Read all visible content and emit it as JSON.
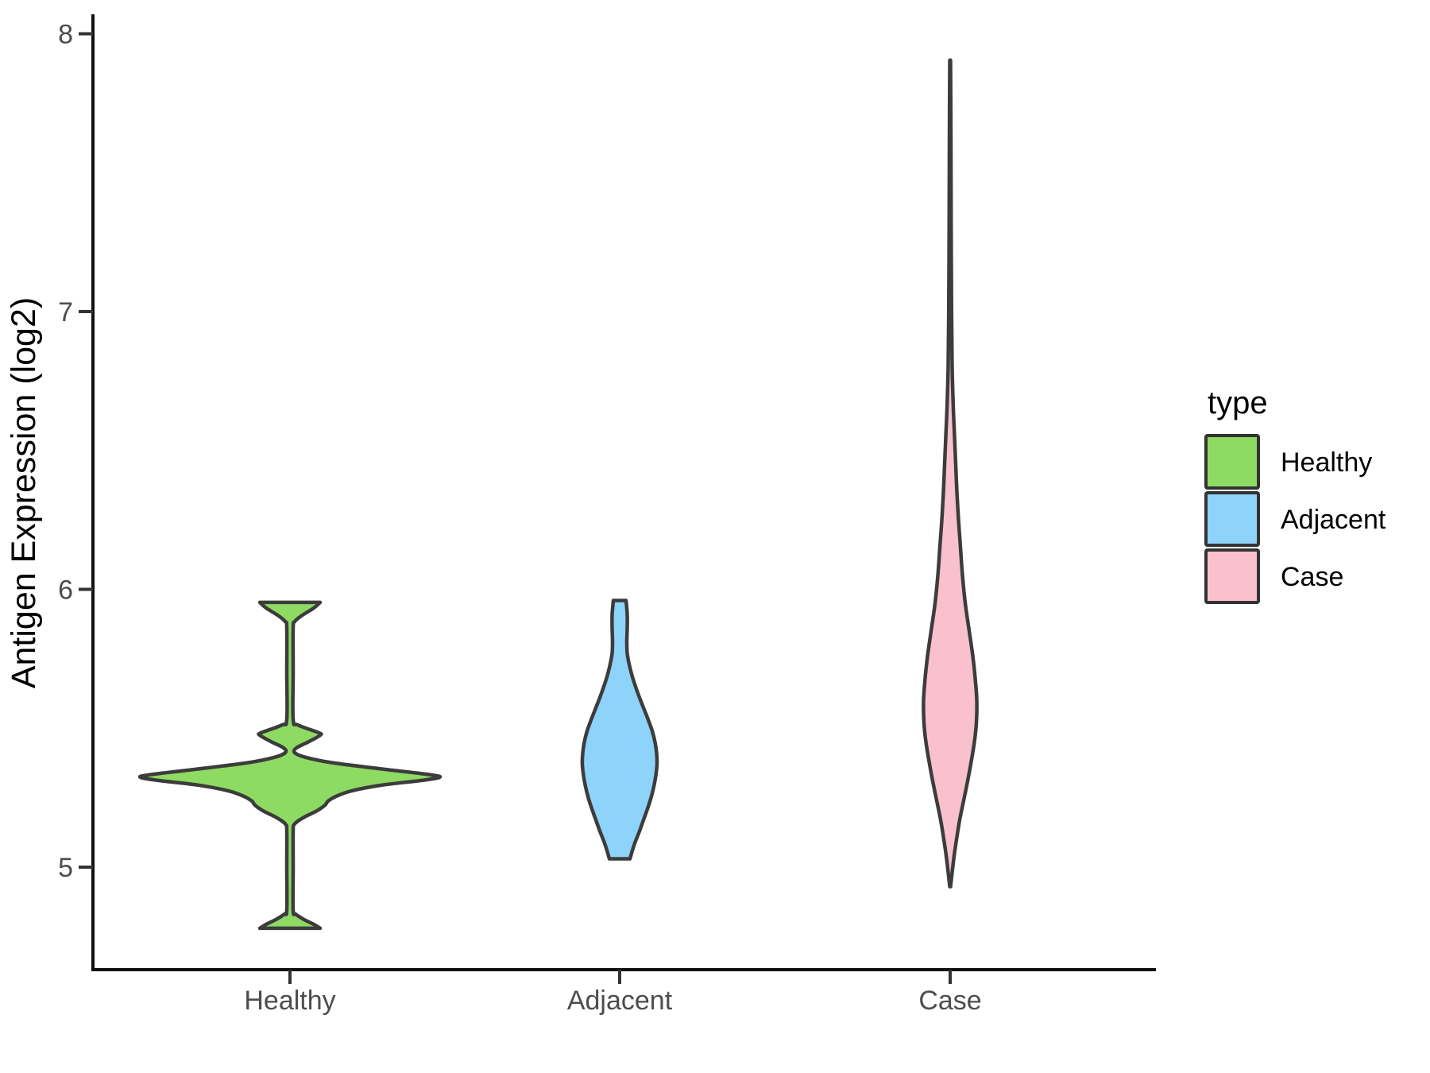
{
  "figure": {
    "background": "#FFFFFF"
  },
  "chart_data": {
    "type": "violin",
    "title": "",
    "xlabel": "",
    "ylabel": "Antigen Expression (log2)",
    "categories": [
      "Healthy",
      "Adjacent",
      "Case"
    ],
    "y_ticks": [
      5,
      6,
      7,
      8
    ],
    "ylim": [
      4.6,
      8.05
    ],
    "grid": false,
    "axis": {
      "line_color": "#111111",
      "tick_color": "#333333",
      "tick_label_color": "#4D4D4D",
      "title_color": "#000000"
    },
    "violin_outline_color": "#3C3C3C",
    "legend": {
      "title": "type",
      "position": "right",
      "entries": [
        {
          "label": "Healthy",
          "color": "#8EDB63"
        },
        {
          "label": "Adjacent",
          "color": "#8ED3FA"
        },
        {
          "label": "Case",
          "color": "#F8C1CD"
        }
      ]
    },
    "series": [
      {
        "name": "Healthy",
        "color": "#8EDB63",
        "min": 4.78,
        "max": 5.95,
        "peak_density_at": 5.33,
        "profile": [
          [
            5.953,
            38
          ],
          [
            5.933,
            30
          ],
          [
            5.904,
            14
          ],
          [
            5.884,
            6
          ],
          [
            5.861,
            4
          ],
          [
            5.7,
            4
          ],
          [
            5.532,
            4
          ],
          [
            5.512,
            10
          ],
          [
            5.484,
            36
          ],
          [
            5.475,
            38
          ],
          [
            5.452,
            24
          ],
          [
            5.429,
            8
          ],
          [
            5.412,
            6
          ],
          [
            5.395,
            20
          ],
          [
            5.375,
            55
          ],
          [
            5.352,
            120
          ],
          [
            5.332,
            178
          ],
          [
            5.323,
            188
          ],
          [
            5.312,
            165
          ],
          [
            5.295,
            115
          ],
          [
            5.275,
            78
          ],
          [
            5.255,
            58
          ],
          [
            5.238,
            48
          ],
          [
            5.223,
            44
          ],
          [
            5.203,
            34
          ],
          [
            5.183,
            20
          ],
          [
            5.166,
            10
          ],
          [
            5.152,
            5
          ],
          [
            5.132,
            4
          ],
          [
            5.0,
            4
          ],
          [
            4.845,
            4
          ],
          [
            4.831,
            7
          ],
          [
            4.811,
            18
          ],
          [
            4.794,
            30
          ],
          [
            4.78,
            38
          ]
        ]
      },
      {
        "name": "Adjacent",
        "color": "#8ED3FA",
        "min": 5.03,
        "max": 5.96,
        "peak_density_at": 5.4,
        "profile": [
          [
            5.96,
            8
          ],
          [
            5.91,
            9.5
          ],
          [
            5.86,
            9.5
          ],
          [
            5.81,
            9
          ],
          [
            5.77,
            9.5
          ],
          [
            5.73,
            12
          ],
          [
            5.69,
            15.5
          ],
          [
            5.65,
            20
          ],
          [
            5.61,
            25
          ],
          [
            5.57,
            30.5
          ],
          [
            5.53,
            36
          ],
          [
            5.49,
            41
          ],
          [
            5.45,
            44.5
          ],
          [
            5.41,
            46.5
          ],
          [
            5.37,
            47
          ],
          [
            5.33,
            45.5
          ],
          [
            5.29,
            43
          ],
          [
            5.25,
            39.5
          ],
          [
            5.21,
            35
          ],
          [
            5.17,
            30
          ],
          [
            5.13,
            25
          ],
          [
            5.09,
            19.5
          ],
          [
            5.06,
            16
          ],
          [
            5.04,
            14
          ],
          [
            5.03,
            13
          ]
        ]
      },
      {
        "name": "Case",
        "color": "#F8C1CD",
        "min": 4.93,
        "max": 7.9,
        "peak_density_at": 5.58,
        "profile": [
          [
            7.905,
            0.5
          ],
          [
            7.6,
            1
          ],
          [
            7.3,
            1.3
          ],
          [
            7.0,
            1.8
          ],
          [
            6.8,
            2.5
          ],
          [
            6.65,
            4
          ],
          [
            6.55,
            5.5
          ],
          [
            6.45,
            7
          ],
          [
            6.35,
            8.5
          ],
          [
            6.25,
            10.5
          ],
          [
            6.15,
            13
          ],
          [
            6.05,
            15.5
          ],
          [
            5.95,
            19
          ],
          [
            5.85,
            24
          ],
          [
            5.76,
            28.5
          ],
          [
            5.68,
            31.5
          ],
          [
            5.6,
            33.5
          ],
          [
            5.52,
            33
          ],
          [
            5.45,
            30.5
          ],
          [
            5.38,
            26.5
          ],
          [
            5.31,
            22
          ],
          [
            5.24,
            17
          ],
          [
            5.17,
            12
          ],
          [
            5.1,
            8
          ],
          [
            5.03,
            4.5
          ],
          [
            4.93,
            0.5
          ]
        ]
      }
    ]
  }
}
